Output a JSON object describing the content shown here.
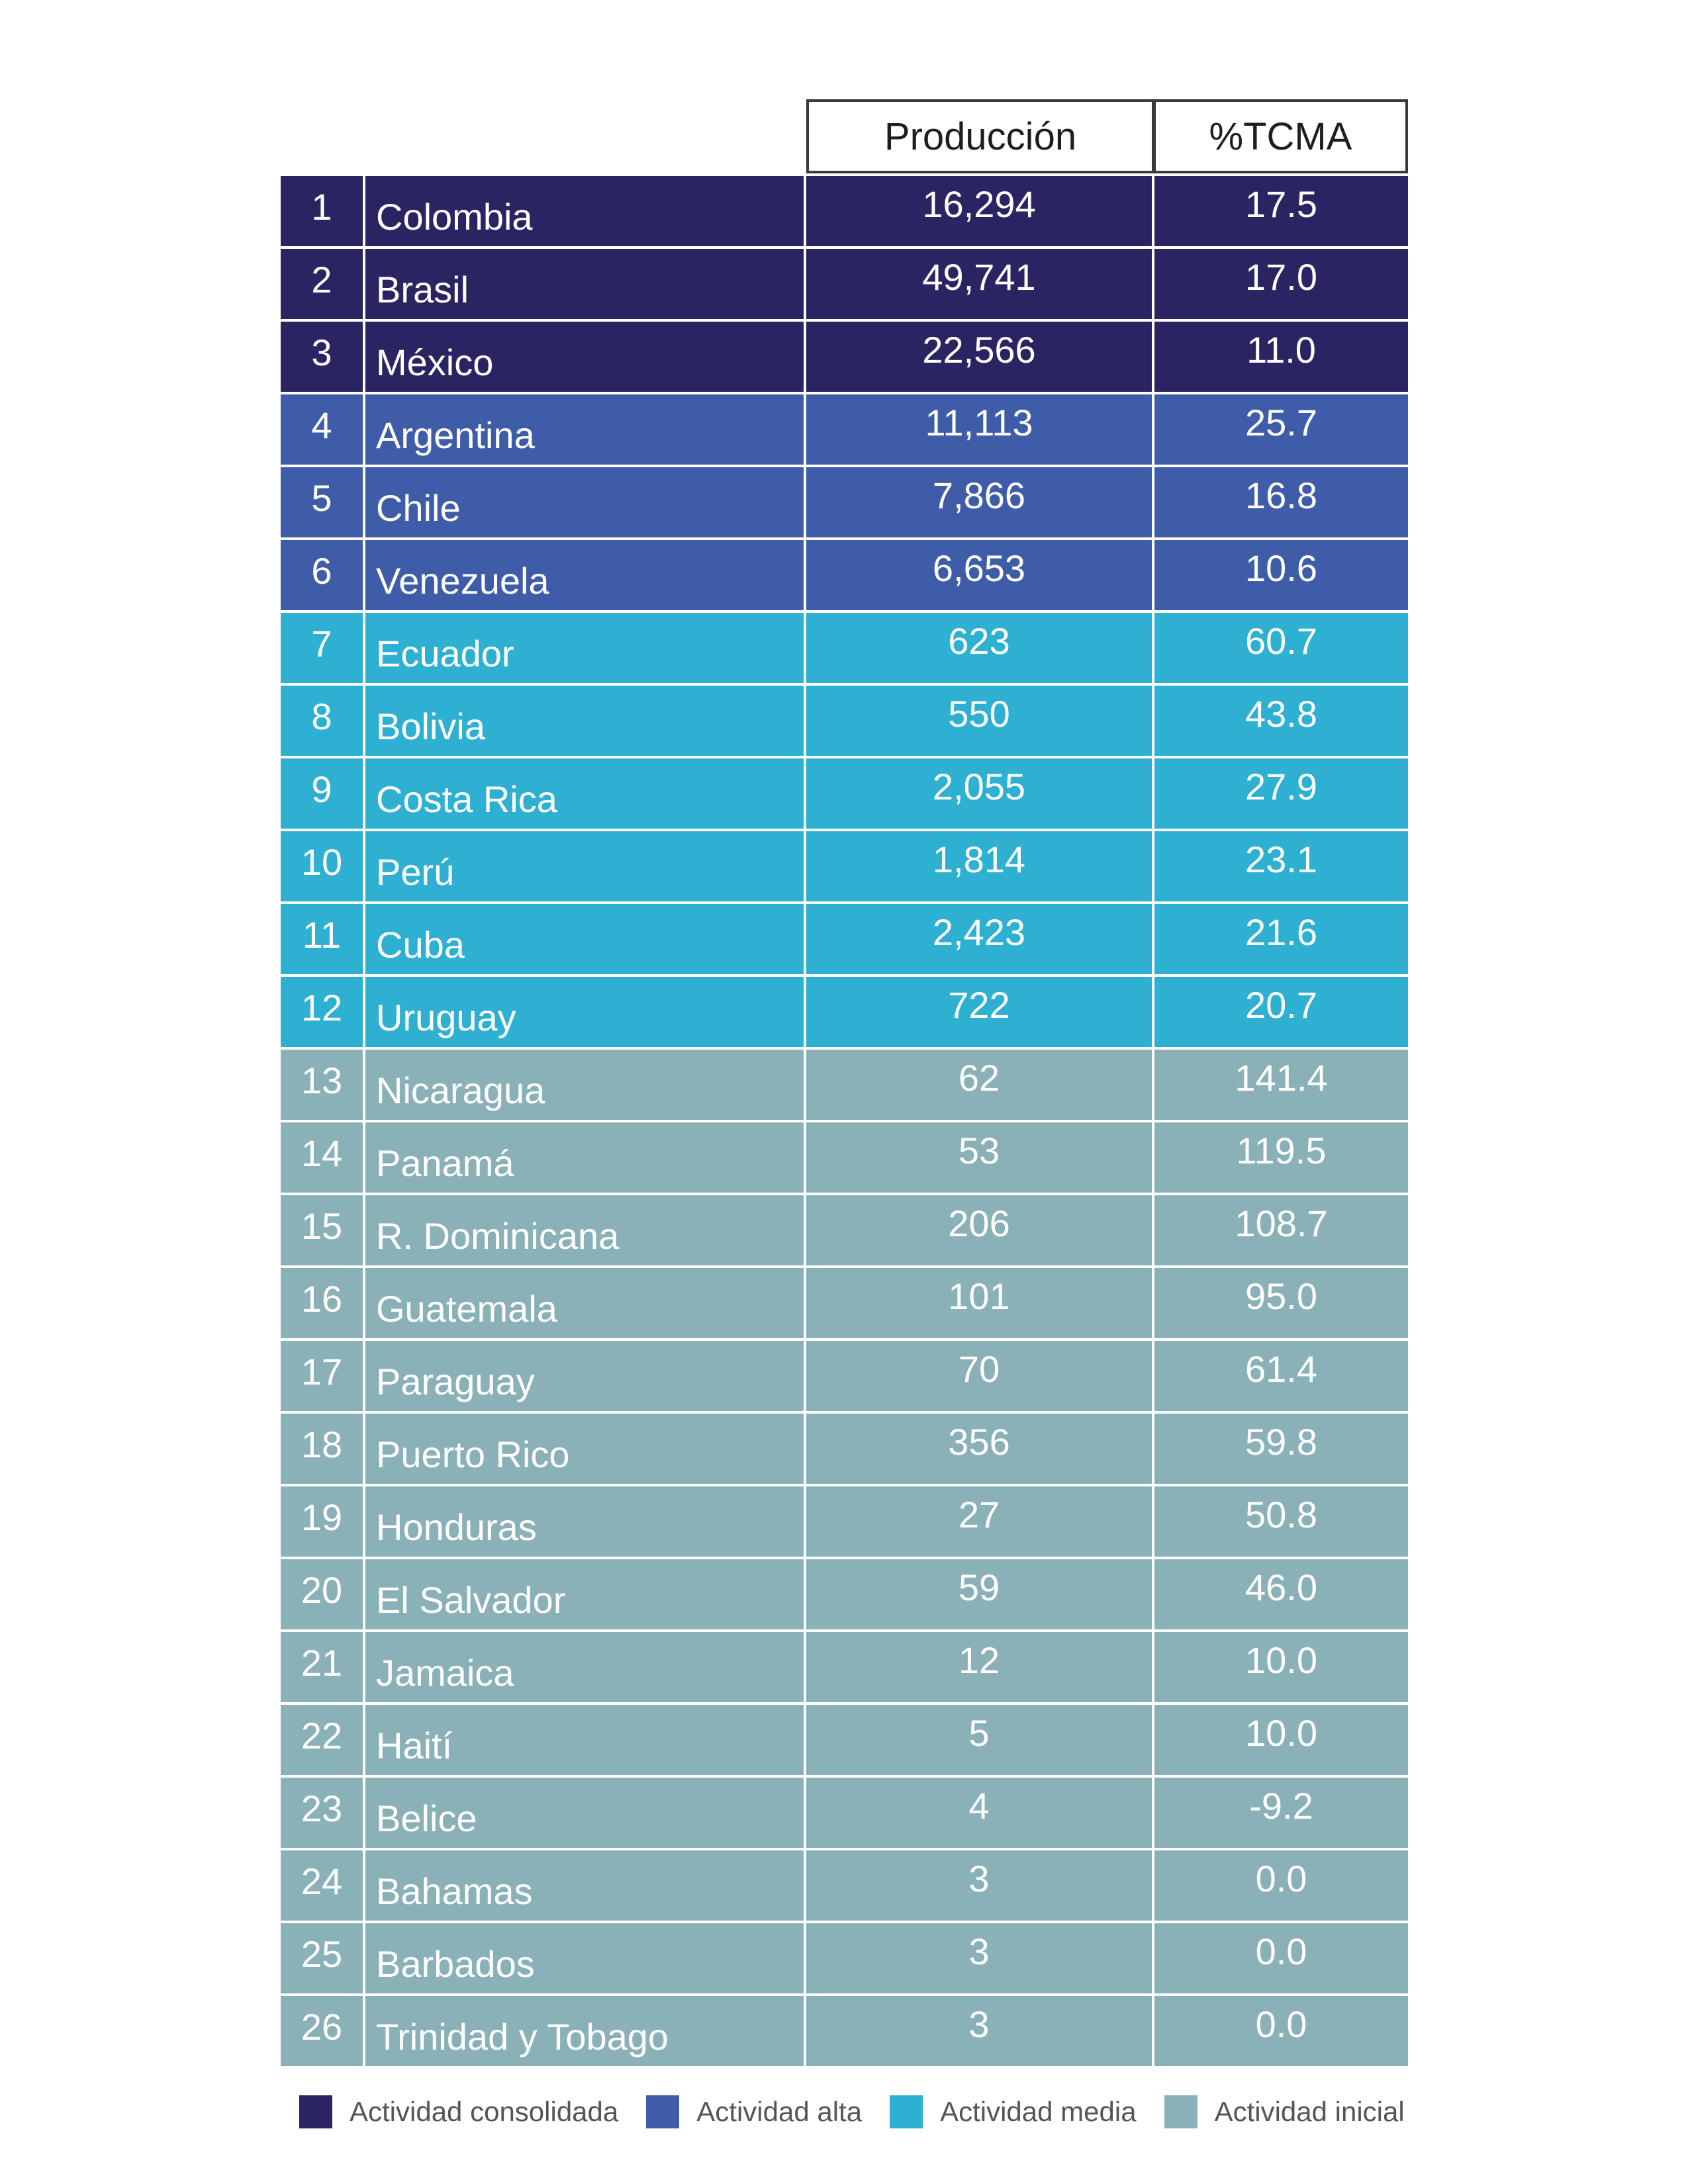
{
  "header": {
    "production": "Producción",
    "tcma": "%TCMA"
  },
  "colors": {
    "consolidada": "#2a2562",
    "alta": "#3f5ca9",
    "media": "#2eb0d2",
    "inicial": "#89b1b7"
  },
  "rows": [
    {
      "rank": "1",
      "country": "Colombia",
      "production": "16,294",
      "tcma": "17.5",
      "category": "consolidada"
    },
    {
      "rank": "2",
      "country": "Brasil",
      "production": "49,741",
      "tcma": "17.0",
      "category": "consolidada"
    },
    {
      "rank": "3",
      "country": "México",
      "production": "22,566",
      "tcma": "11.0",
      "category": "consolidada"
    },
    {
      "rank": "4",
      "country": "Argentina",
      "production": "11,113",
      "tcma": "25.7",
      "category": "alta"
    },
    {
      "rank": "5",
      "country": "Chile",
      "production": "7,866",
      "tcma": "16.8",
      "category": "alta"
    },
    {
      "rank": "6",
      "country": "Venezuela",
      "production": "6,653",
      "tcma": "10.6",
      "category": "alta"
    },
    {
      "rank": "7",
      "country": "Ecuador",
      "production": "623",
      "tcma": "60.7",
      "category": "media"
    },
    {
      "rank": "8",
      "country": "Bolivia",
      "production": "550",
      "tcma": "43.8",
      "category": "media"
    },
    {
      "rank": "9",
      "country": "Costa Rica",
      "production": "2,055",
      "tcma": "27.9",
      "category": "media"
    },
    {
      "rank": "10",
      "country": "Perú",
      "production": "1,814",
      "tcma": "23.1",
      "category": "media"
    },
    {
      "rank": "11",
      "country": "Cuba",
      "production": "2,423",
      "tcma": "21.6",
      "category": "media"
    },
    {
      "rank": "12",
      "country": "Uruguay",
      "production": "722",
      "tcma": "20.7",
      "category": "media"
    },
    {
      "rank": "13",
      "country": "Nicaragua",
      "production": "62",
      "tcma": "141.4",
      "category": "inicial"
    },
    {
      "rank": "14",
      "country": "Panamá",
      "production": "53",
      "tcma": "119.5",
      "category": "inicial"
    },
    {
      "rank": "15",
      "country": "R. Dominicana",
      "production": "206",
      "tcma": "108.7",
      "category": "inicial"
    },
    {
      "rank": "16",
      "country": "Guatemala",
      "production": "101",
      "tcma": "95.0",
      "category": "inicial"
    },
    {
      "rank": "17",
      "country": "Paraguay",
      "production": "70",
      "tcma": "61.4",
      "category": "inicial"
    },
    {
      "rank": "18",
      "country": "Puerto Rico",
      "production": "356",
      "tcma": "59.8",
      "category": "inicial"
    },
    {
      "rank": "19",
      "country": "Honduras",
      "production": "27",
      "tcma": "50.8",
      "category": "inicial"
    },
    {
      "rank": "20",
      "country": "El Salvador",
      "production": "59",
      "tcma": "46.0",
      "category": "inicial"
    },
    {
      "rank": "21",
      "country": "Jamaica",
      "production": "12",
      "tcma": "10.0",
      "category": "inicial"
    },
    {
      "rank": "22",
      "country": "Haití",
      "production": "5",
      "tcma": "10.0",
      "category": "inicial"
    },
    {
      "rank": "23",
      "country": "Belice",
      "production": "4",
      "tcma": "-9.2",
      "category": "inicial"
    },
    {
      "rank": "24",
      "country": "Bahamas",
      "production": "3",
      "tcma": "0.0",
      "category": "inicial"
    },
    {
      "rank": "25",
      "country": "Barbados",
      "production": "3",
      "tcma": "0.0",
      "category": "inicial"
    },
    {
      "rank": "26",
      "country": "Trinidad y Tobago",
      "production": "3",
      "tcma": "0.0",
      "category": "inicial"
    }
  ],
  "legend": [
    {
      "key": "consolidada",
      "label": "Actividad consolidada"
    },
    {
      "key": "alta",
      "label": "Actividad alta"
    },
    {
      "key": "media",
      "label": "Actividad media"
    },
    {
      "key": "inicial",
      "label": "Actividad inicial"
    }
  ]
}
